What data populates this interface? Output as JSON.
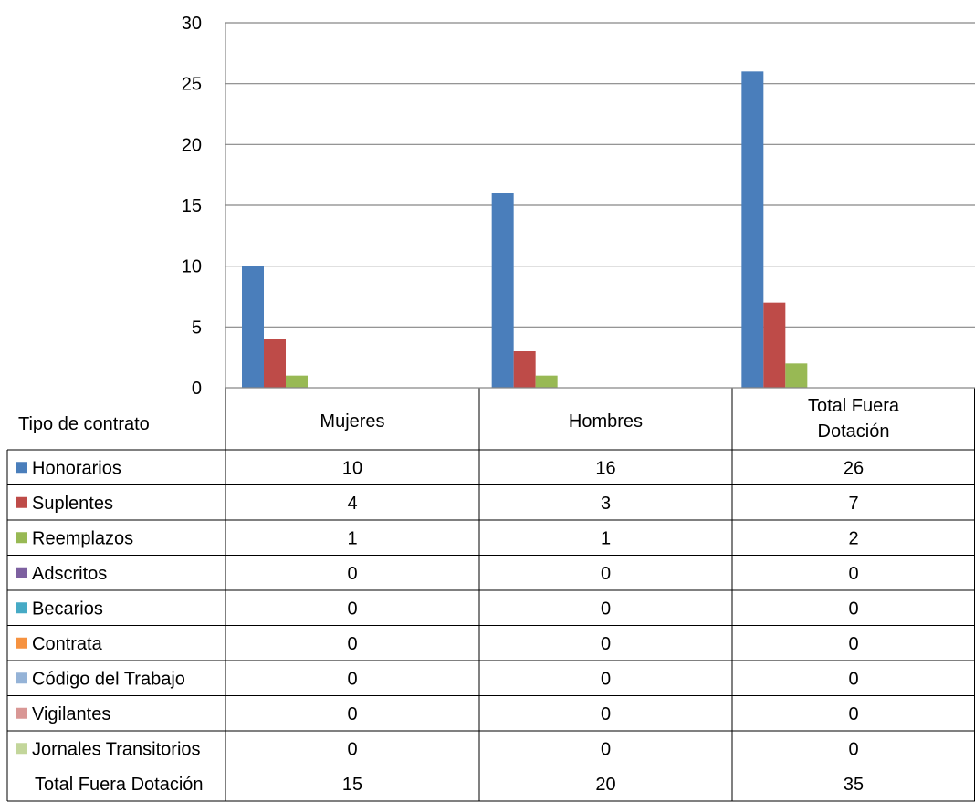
{
  "chart_data": {
    "type": "bar",
    "categories": [
      "Mujeres",
      "Hombres",
      "Total Fuera Dotación"
    ],
    "category_lines": [
      [
        "Mujeres"
      ],
      [
        "Hombres"
      ],
      [
        "Total Fuera",
        "Dotación"
      ]
    ],
    "ylim": [
      0,
      30
    ],
    "yticks": [
      0,
      5,
      10,
      15,
      20,
      25,
      30
    ],
    "grid": true,
    "legend_header": "Tipo de contrato",
    "series": [
      {
        "name": "Honorarios",
        "color": "#4a7ebb",
        "values": [
          10,
          16,
          26
        ]
      },
      {
        "name": "Suplentes",
        "color": "#be4b48",
        "values": [
          4,
          3,
          7
        ]
      },
      {
        "name": "Reemplazos",
        "color": "#98b954",
        "values": [
          1,
          1,
          2
        ]
      },
      {
        "name": "Adscritos",
        "color": "#7d60a0",
        "values": [
          0,
          0,
          0
        ]
      },
      {
        "name": "Becarios",
        "color": "#46aac5",
        "values": [
          0,
          0,
          0
        ]
      },
      {
        "name": "Contrata",
        "color": "#f69240",
        "values": [
          0,
          0,
          0
        ]
      },
      {
        "name": "Código del Trabajo",
        "color": "#95b3d7",
        "values": [
          0,
          0,
          0
        ]
      },
      {
        "name": "Vigilantes",
        "color": "#d99795",
        "values": [
          0,
          0,
          0
        ]
      },
      {
        "name": "Jornales Transitorios",
        "color": "#c3d69b",
        "values": [
          0,
          0,
          0
        ]
      }
    ],
    "total_row": {
      "label": "Total Fuera Dotación",
      "values": [
        15,
        20,
        35
      ]
    }
  }
}
